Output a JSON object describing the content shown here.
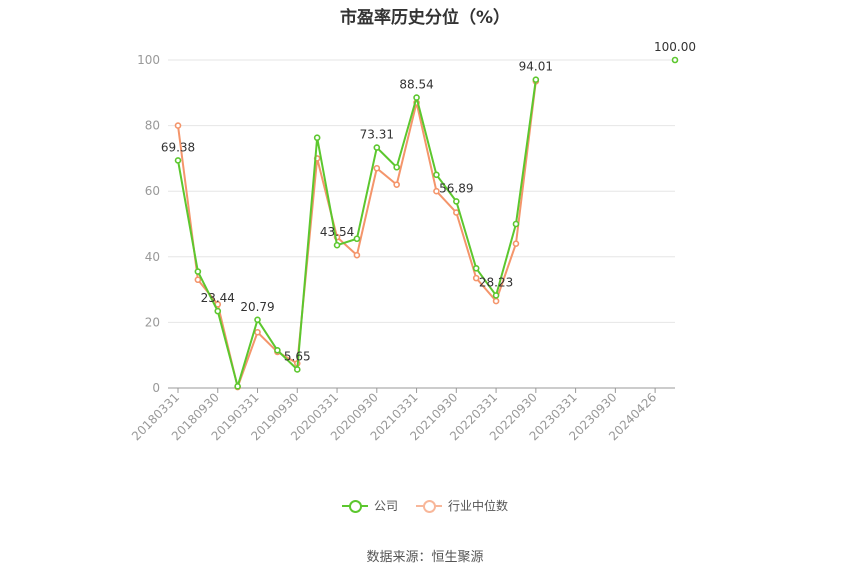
{
  "chart_data": {
    "type": "line",
    "title": "市盈率历史分位（%）",
    "source": "数据来源：恒生聚源",
    "ylim": [
      0,
      100
    ],
    "y_ticks": [
      "0",
      "20",
      "40",
      "60",
      "80",
      "100"
    ],
    "x_tick_labels": [
      "20180331",
      "20180930",
      "20190331",
      "20190930",
      "20200331",
      "20200930",
      "20210331",
      "20210930",
      "20220331",
      "20220930",
      "20230331",
      "20230930",
      "20240426"
    ],
    "grid": true,
    "legend_position": "bottom",
    "series": [
      {
        "name": "公司",
        "color": "#5cc72e",
        "values": [
          69.38,
          35.5,
          23.44,
          0.5,
          20.79,
          11.5,
          5.65,
          76.3,
          43.54,
          45.5,
          73.31,
          67.3,
          88.54,
          65.0,
          56.89,
          36.5,
          28.23,
          50.0,
          94.01,
          null,
          null,
          null,
          null,
          null,
          null,
          100.0
        ],
        "labels": [
          {
            "index": 0,
            "text": "69.38"
          },
          {
            "index": 2,
            "text": "23.44"
          },
          {
            "index": 4,
            "text": "20.79"
          },
          {
            "index": 6,
            "text": "5.65"
          },
          {
            "index": 8,
            "text": "43.54"
          },
          {
            "index": 10,
            "text": "73.31"
          },
          {
            "index": 12,
            "text": "88.54"
          },
          {
            "index": 14,
            "text": "56.89"
          },
          {
            "index": 16,
            "text": "28.23"
          },
          {
            "index": 18,
            "text": "94.01"
          },
          {
            "index": 25,
            "text": "100.00"
          }
        ]
      },
      {
        "name": "行业中位数",
        "color": "#f4956b",
        "values": [
          80.0,
          33.0,
          25.5,
          0.3,
          17.0,
          11.0,
          7.5,
          70.0,
          46.0,
          40.5,
          67.0,
          62.0,
          87.0,
          60.0,
          53.5,
          33.5,
          26.5,
          44.0,
          93.5,
          null,
          null,
          null,
          null,
          null,
          null,
          null
        ]
      }
    ]
  }
}
